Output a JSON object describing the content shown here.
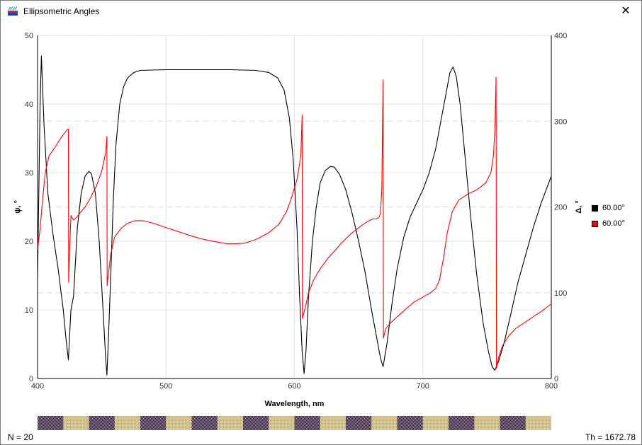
{
  "window": {
    "title": "Ellipsometric Angles",
    "icon": "layers-icon",
    "close_icon": "close-icon"
  },
  "legend": [
    {
      "label": "60.00°",
      "color": "#000000"
    },
    {
      "label": "60.00°",
      "color": "#ff0000"
    }
  ],
  "status": {
    "left": "N = 20",
    "right": "Th = 1672.78"
  },
  "chart_data": {
    "type": "line",
    "xlabel": "Wavelength, nm",
    "ylabel_left": "ψ, °",
    "ylabel_right": "Δ, °",
    "xlim": [
      400,
      800
    ],
    "ylim_left": [
      0,
      50
    ],
    "ylim_right": [
      0,
      400
    ],
    "x_ticks": [
      400,
      500,
      600,
      700,
      800
    ],
    "y_left_ticks": [
      0,
      10,
      20,
      30,
      40,
      50
    ],
    "y_right_ticks": [
      0,
      100,
      200,
      300,
      400
    ],
    "grid": true,
    "legend_position": "right",
    "series": [
      {
        "axis": "left",
        "color": "#000000",
        "points": [
          [
            400,
            14.5
          ],
          [
            402,
            40
          ],
          [
            403,
            47
          ],
          [
            405,
            37
          ],
          [
            408,
            27
          ],
          [
            412,
            21
          ],
          [
            416,
            16
          ],
          [
            420,
            10
          ],
          [
            422,
            6
          ],
          [
            424,
            2.7
          ],
          [
            426,
            10
          ],
          [
            428,
            12
          ],
          [
            431,
            22
          ],
          [
            434,
            27
          ],
          [
            437,
            29.5
          ],
          [
            440,
            30.2
          ],
          [
            442,
            29.8
          ],
          [
            445,
            27
          ],
          [
            448,
            20
          ],
          [
            451,
            10
          ],
          [
            453,
            3
          ],
          [
            454,
            0.5
          ],
          [
            455,
            5
          ],
          [
            457,
            15
          ],
          [
            459,
            26
          ],
          [
            461,
            34
          ],
          [
            464,
            40
          ],
          [
            467,
            42.5
          ],
          [
            470,
            43.8
          ],
          [
            475,
            44.6
          ],
          [
            480,
            44.9
          ],
          [
            500,
            45
          ],
          [
            550,
            45
          ],
          [
            570,
            44.9
          ],
          [
            580,
            44.6
          ],
          [
            587,
            43.8
          ],
          [
            592,
            42
          ],
          [
            596,
            38
          ],
          [
            599,
            32
          ],
          [
            602,
            22
          ],
          [
            604,
            12
          ],
          [
            606,
            4
          ],
          [
            607.5,
            0.7
          ],
          [
            609,
            4
          ],
          [
            611,
            12
          ],
          [
            614,
            20
          ],
          [
            617,
            25
          ],
          [
            620,
            28.5
          ],
          [
            624,
            30.3
          ],
          [
            628,
            30.9
          ],
          [
            631,
            30.8
          ],
          [
            635,
            29.8
          ],
          [
            640,
            27.5
          ],
          [
            645,
            24
          ],
          [
            650,
            20
          ],
          [
            655,
            15.5
          ],
          [
            660,
            10
          ],
          [
            664,
            6
          ],
          [
            667,
            3
          ],
          [
            669,
            1.7
          ],
          [
            672,
            5
          ],
          [
            676,
            11
          ],
          [
            680,
            16
          ],
          [
            685,
            20.5
          ],
          [
            690,
            23.5
          ],
          [
            695,
            25.5
          ],
          [
            700,
            27.5
          ],
          [
            705,
            30
          ],
          [
            710,
            33.5
          ],
          [
            714,
            37.5
          ],
          [
            718,
            41.5
          ],
          [
            721,
            44.5
          ],
          [
            723.5,
            45.4
          ],
          [
            726,
            44
          ],
          [
            729,
            40
          ],
          [
            733,
            32
          ],
          [
            737,
            24
          ],
          [
            742,
            15
          ],
          [
            747,
            8
          ],
          [
            751,
            4
          ],
          [
            754,
            1.7
          ],
          [
            756,
            1.2
          ],
          [
            759,
            2.5
          ],
          [
            763,
            5
          ],
          [
            768,
            9
          ],
          [
            774,
            14
          ],
          [
            780,
            18
          ],
          [
            786,
            22
          ],
          [
            792,
            25.5
          ],
          [
            800,
            29.5
          ]
        ]
      },
      {
        "axis": "right",
        "color": "#ff0000",
        "points": [
          [
            400,
            150
          ],
          [
            402,
            175
          ],
          [
            404,
            210
          ],
          [
            406,
            240
          ],
          [
            409,
            260
          ],
          [
            413,
            268
          ],
          [
            418,
            280
          ],
          [
            421,
            286
          ],
          [
            423,
            290
          ],
          [
            424,
            290.5
          ],
          [
            424.2,
            112
          ],
          [
            425,
            150
          ],
          [
            426,
            190
          ],
          [
            427,
            187
          ],
          [
            428,
            185
          ],
          [
            430,
            187
          ],
          [
            433,
            193
          ],
          [
            437,
            200
          ],
          [
            441,
            210
          ],
          [
            446,
            225
          ],
          [
            450,
            242
          ],
          [
            453,
            263
          ],
          [
            454,
            282
          ],
          [
            454.2,
            108
          ],
          [
            455,
            120
          ],
          [
            457,
            145
          ],
          [
            460,
            165
          ],
          [
            465,
            175
          ],
          [
            470,
            181
          ],
          [
            476,
            184
          ],
          [
            482,
            184
          ],
          [
            490,
            181
          ],
          [
            500,
            176
          ],
          [
            510,
            171
          ],
          [
            520,
            166
          ],
          [
            530,
            162
          ],
          [
            540,
            159
          ],
          [
            548,
            157
          ],
          [
            555,
            157
          ],
          [
            562,
            158
          ],
          [
            570,
            162
          ],
          [
            580,
            170
          ],
          [
            588,
            180
          ],
          [
            594,
            195
          ],
          [
            598,
            212
          ],
          [
            602,
            232
          ],
          [
            604,
            250
          ],
          [
            605,
            262
          ],
          [
            606,
            307
          ],
          [
            606.2,
            70
          ],
          [
            608,
            80
          ],
          [
            611,
            100
          ],
          [
            615,
            115
          ],
          [
            620,
            128
          ],
          [
            626,
            140
          ],
          [
            632,
            150
          ],
          [
            638,
            160
          ],
          [
            645,
            170
          ],
          [
            652,
            178
          ],
          [
            657,
            183
          ],
          [
            661,
            186
          ],
          [
            664,
            186
          ],
          [
            666,
            188
          ],
          [
            667,
            193
          ],
          [
            668,
            220
          ],
          [
            669,
            348
          ],
          [
            669.3,
            47
          ],
          [
            671,
            58
          ],
          [
            675,
            65
          ],
          [
            680,
            72
          ],
          [
            686,
            80
          ],
          [
            693,
            89
          ],
          [
            700,
            95
          ],
          [
            706,
            100
          ],
          [
            710,
            105
          ],
          [
            713,
            115
          ],
          [
            716,
            140
          ],
          [
            719,
            170
          ],
          [
            723,
            195
          ],
          [
            728,
            208
          ],
          [
            735,
            215
          ],
          [
            742,
            220
          ],
          [
            749,
            228
          ],
          [
            753,
            240
          ],
          [
            755,
            260
          ],
          [
            756,
            290
          ],
          [
            757,
            351
          ],
          [
            757.3,
            12
          ],
          [
            759,
            25
          ],
          [
            762,
            38
          ],
          [
            766,
            48
          ],
          [
            772,
            58
          ],
          [
            779,
            65
          ],
          [
            786,
            72
          ],
          [
            793,
            79
          ],
          [
            800,
            87
          ]
        ]
      }
    ]
  }
}
